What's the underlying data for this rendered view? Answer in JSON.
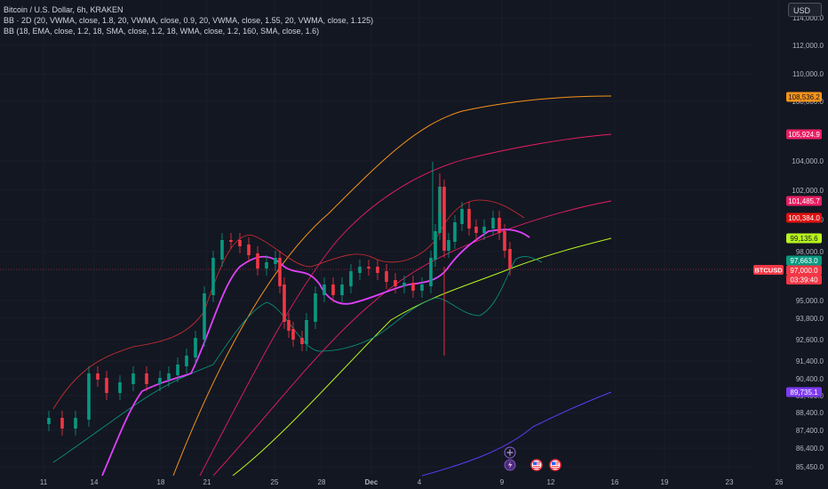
{
  "legend": {
    "line1": "Bitcoin / U.S. Dollar, 6h, KRAKEN",
    "line2": "BB · 2D (20, VWMA, close, 1.8, 20, VWMA, close, 0.9, 20, VWMA, close, 1.55, 20, VWMA, close, 1.125)",
    "line3": "BB (18, EMA, close, 1.2, 18, SMA, close, 1.2, 18, WMA, close, 1.2, 160, SMA, close, 1.6)"
  },
  "currency_button": "USD",
  "symbol_tag": "BTCUSD",
  "countdown": "03:39:40",
  "price_axis": [
    "114,000.0",
    "112,000.0",
    "110,000.0",
    "108,000.0",
    "104,000.0",
    "102,000.0",
    "100,000.0",
    "98,000.0",
    "95,000.0",
    "93,800.0",
    "92,600.0",
    "91,400.0",
    "90,400.0",
    "89,400.0",
    "88,400.0",
    "87,400.0",
    "86,400.0",
    "85,450.0"
  ],
  "time_axis": [
    "11",
    "14",
    "18",
    "21",
    "25",
    "28",
    "Dec",
    "4",
    "9",
    "12",
    "16",
    "19",
    "23",
    "26"
  ],
  "price_tags": [
    {
      "label": "108,536.2",
      "color": "#f7931a",
      "text_color": "#131722"
    },
    {
      "label": "105,924.9",
      "color": "#e91e63",
      "text_color": "#ffffff"
    },
    {
      "label": "101,485.7",
      "color": "#e91e63",
      "text_color": "#ffffff"
    },
    {
      "label": "100,384.0",
      "color": "#e01010",
      "text_color": "#ffffff"
    },
    {
      "label": "99,135.6",
      "color": "#b7f51e",
      "text_color": "#131722"
    },
    {
      "label": "97,663.0",
      "color": "#089981",
      "text_color": "#ffffff"
    },
    {
      "label": "97,000.0",
      "color": "#f23645",
      "text_color": "#ffffff"
    },
    {
      "label": "89,735.1",
      "color": "#7e3bf2",
      "text_color": "#ffffff"
    }
  ],
  "colors": {
    "background": "#131722",
    "up_candle": "#089981",
    "down_candle": "#f23645",
    "orange_band": "#f7931a",
    "red_band": "#e91e63",
    "pink_basis": "#e040fb",
    "lime_basis": "#b7f51e",
    "teal_band": "#089981",
    "purple_band": "#5b3bf2"
  },
  "icons": [
    "plus-icon",
    "lightning-icon",
    "us-flag-icon",
    "us-flag-icon"
  ]
}
